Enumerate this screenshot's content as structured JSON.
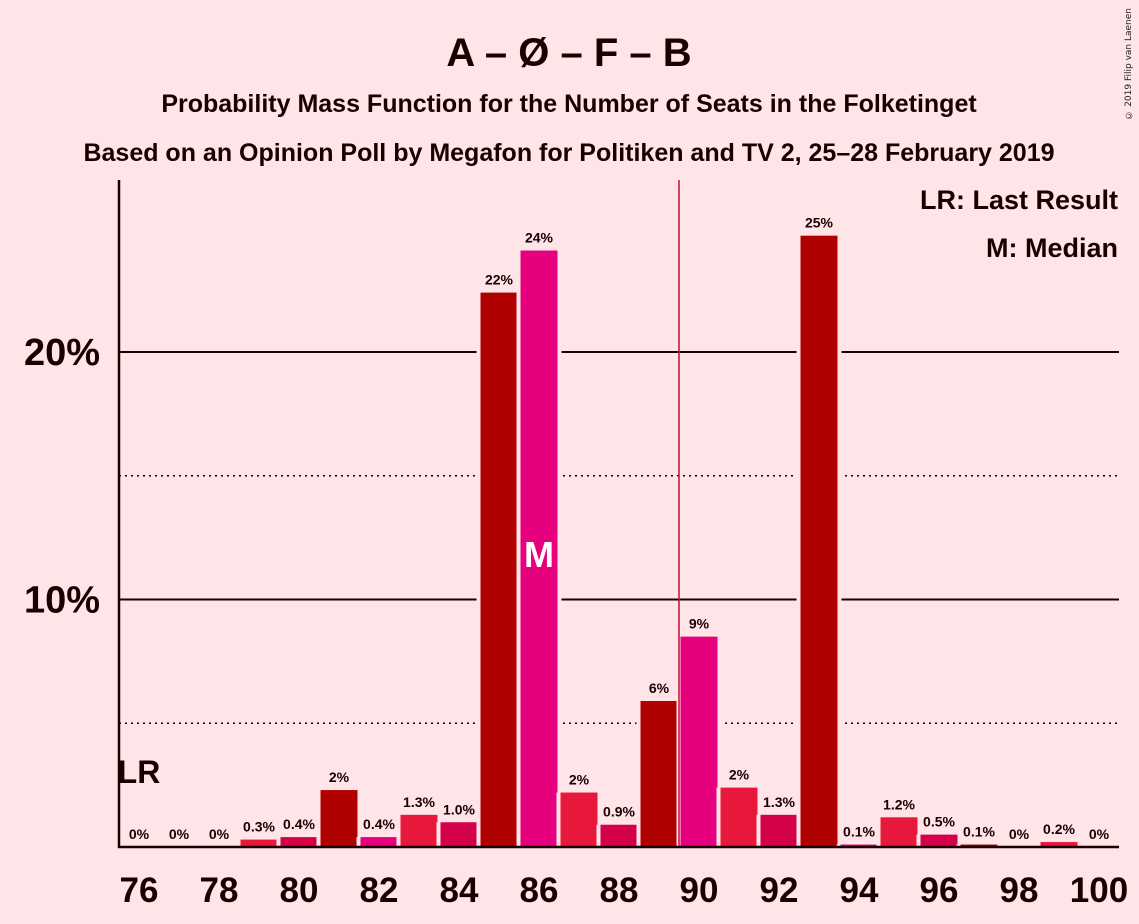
{
  "copyright": "© 2019 Filip van Laenen",
  "chart_data": {
    "type": "bar",
    "title": "A – Ø – F – B",
    "subtitle": "Probability Mass Function for the Number of Seats in the Folketinget",
    "subtitle2": "Based on an Opinion Poll by Megafon for Politiken and TV 2, 25–28 February 2019",
    "legend": [
      "LR: Last Result",
      "M: Median"
    ],
    "legend_position": "top-right",
    "x": [
      76,
      77,
      78,
      79,
      80,
      81,
      82,
      83,
      84,
      85,
      86,
      87,
      88,
      89,
      90,
      91,
      92,
      93,
      94,
      95,
      96,
      97,
      98,
      99,
      100
    ],
    "values": [
      0,
      0,
      0,
      0.3,
      0.4,
      2.3,
      0.4,
      1.3,
      1.0,
      22.4,
      24.1,
      2.2,
      0.9,
      5.9,
      8.5,
      2.4,
      1.3,
      24.7,
      0.1,
      1.2,
      0.5,
      0.1,
      0,
      0.2,
      0
    ],
    "labels": [
      "0%",
      "0%",
      "0%",
      "0.3%",
      "0.4%",
      "2%",
      "0.4%",
      "1.3%",
      "1.0%",
      "22%",
      "24%",
      "2%",
      "0.9%",
      "6%",
      "9%",
      "2%",
      "1.3%",
      "25%",
      "0.1%",
      "1.2%",
      "0.5%",
      "0.1%",
      "0%",
      "0.2%",
      "0%"
    ],
    "colors": [
      "#d4004a",
      "#b00000",
      "#e6007e",
      "#e8173c",
      "#d4004a",
      "#b00000",
      "#e6007e",
      "#e8173c",
      "#d4004a",
      "#b00000",
      "#e6007e",
      "#e8173c",
      "#d4004a",
      "#b00000",
      "#e6007e",
      "#e8173c",
      "#d4004a",
      "#b00000",
      "#e6007e",
      "#e8173c",
      "#d4004a",
      "#b00000",
      "#e6007e",
      "#e8173c",
      "#d4004a"
    ],
    "x_ticks": [
      "76",
      "78",
      "80",
      "82",
      "84",
      "86",
      "88",
      "90",
      "92",
      "94",
      "96",
      "98",
      "100"
    ],
    "y_ticks": [
      "10%",
      "20%"
    ],
    "ylim": [
      0,
      27
    ],
    "grid_major": [
      10,
      20
    ],
    "grid_minor": [
      5,
      15
    ],
    "last_result": {
      "seat": 76,
      "label": "LR"
    },
    "median": {
      "seat": 86,
      "label": "M"
    },
    "majority_line": 89.5
  }
}
